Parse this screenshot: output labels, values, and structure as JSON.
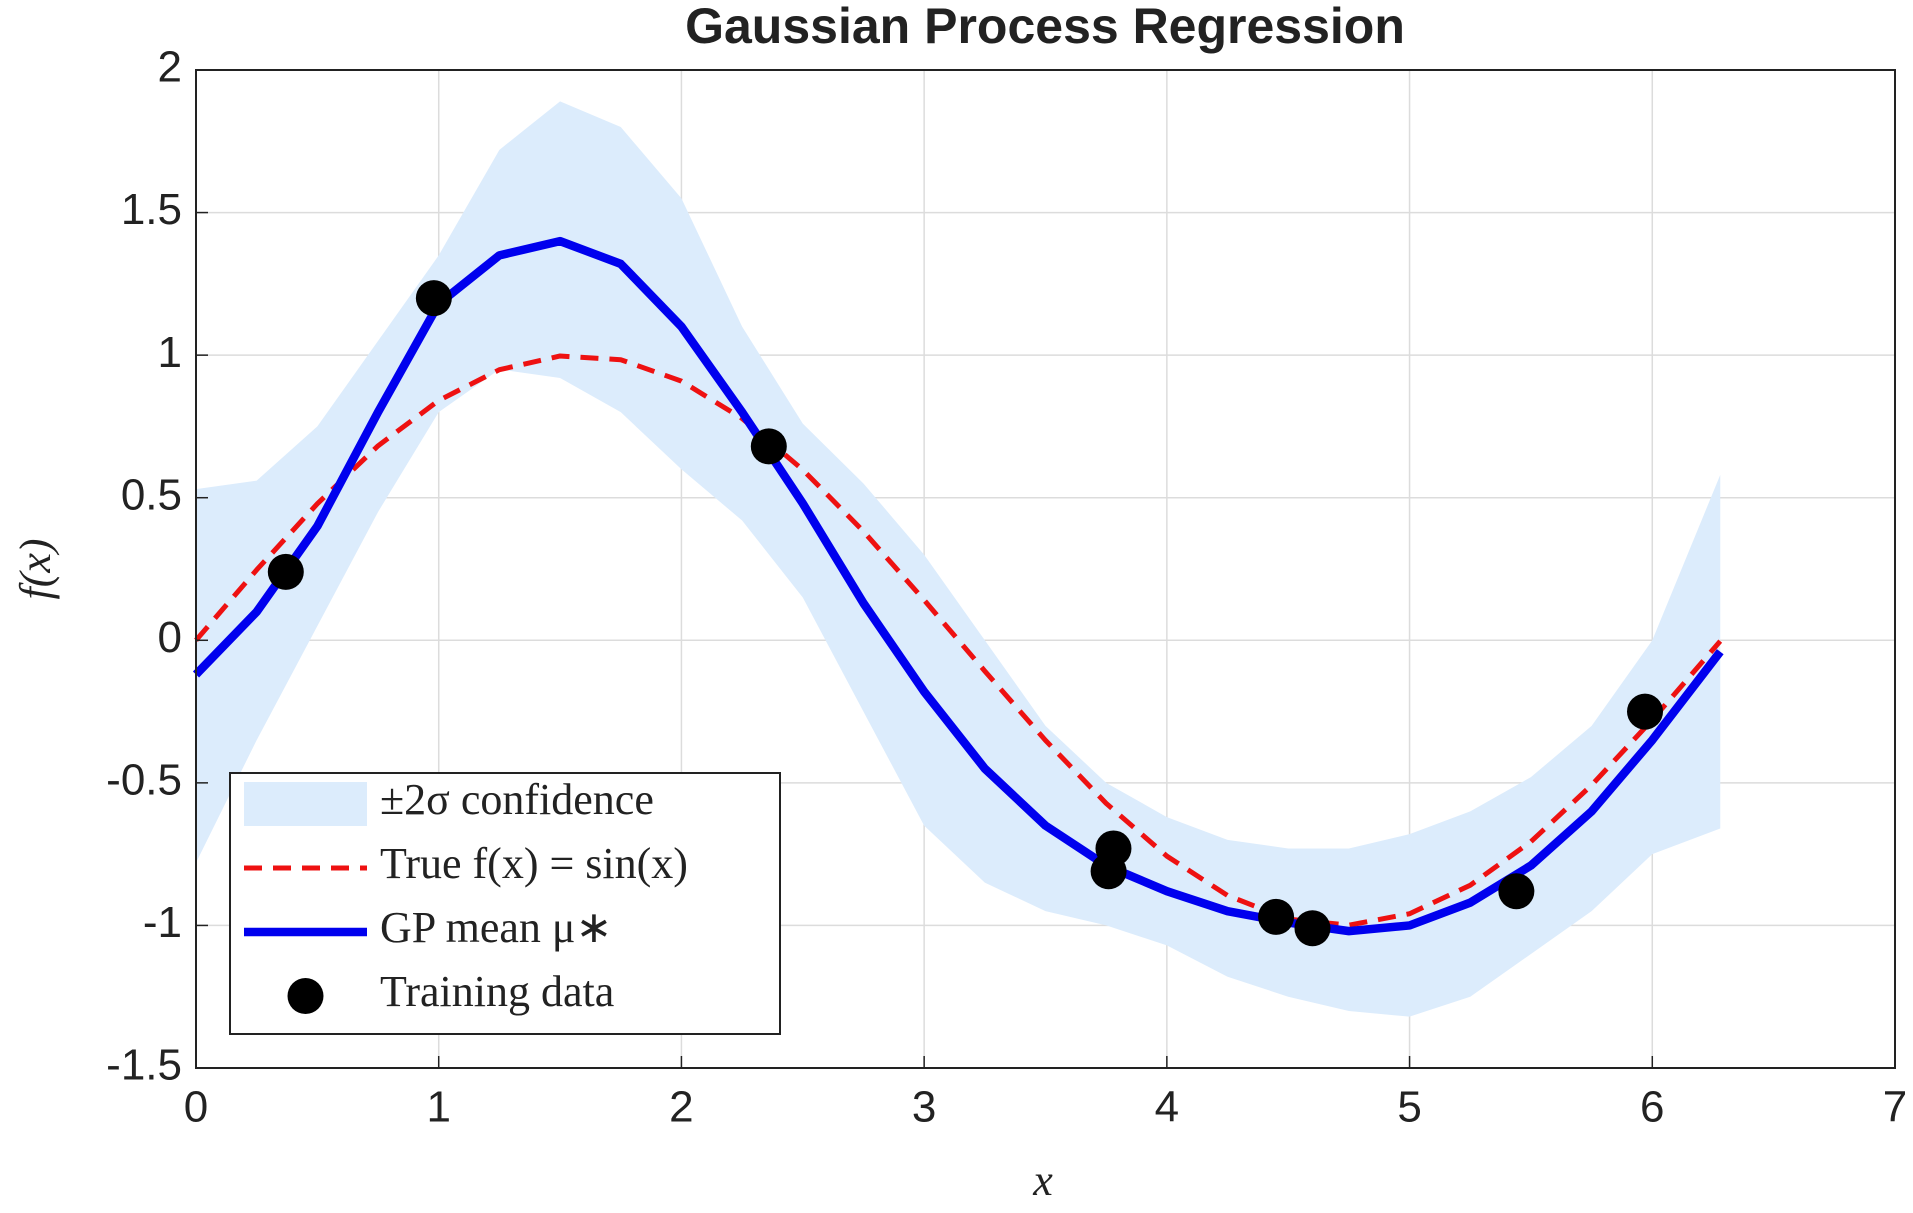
{
  "chart_data": {
    "type": "line",
    "title": "Gaussian Process Regression",
    "x_label": "x",
    "y_label": "f(x)",
    "xlim": [
      0,
      7
    ],
    "xticks": [
      0,
      1,
      2,
      3,
      4,
      5,
      6,
      7
    ],
    "ylim": [
      -1.5,
      2
    ],
    "yticks": [
      -1.5,
      -1,
      -0.5,
      0,
      0.5,
      1,
      1.5,
      2
    ],
    "grid": true,
    "legend": "lower left",
    "x": [
      0,
      0.25,
      0.5,
      0.75,
      1,
      1.25,
      1.5,
      1.75,
      2,
      2.25,
      2.5,
      2.75,
      3,
      3.25,
      3.5,
      3.75,
      4,
      4.25,
      4.5,
      4.75,
      5,
      5.25,
      5.5,
      5.75,
      6,
      6.28
    ],
    "series": [
      {
        "name": "±2σ confidence",
        "type": "band",
        "color": "#dcecfc",
        "upper": [
          0.53,
          0.56,
          0.75,
          1.05,
          1.35,
          1.72,
          1.89,
          1.8,
          1.55,
          1.1,
          0.76,
          0.55,
          0.3,
          0,
          -0.3,
          -0.5,
          -0.62,
          -0.7,
          -0.73,
          -0.73,
          -0.68,
          -0.6,
          -0.48,
          -0.3,
          0,
          0.58
        ],
        "lower": [
          -0.78,
          -0.35,
          0.05,
          0.45,
          0.8,
          0.95,
          0.92,
          0.8,
          0.6,
          0.42,
          0.15,
          -0.25,
          -0.65,
          -0.85,
          -0.95,
          -1,
          -1.07,
          -1.18,
          -1.25,
          -1.3,
          -1.32,
          -1.25,
          -1.1,
          -0.95,
          -0.75,
          -0.66
        ]
      },
      {
        "name": "True f(x) = sin(x)",
        "type": "dashed",
        "color": "#ee1111",
        "values": [
          0,
          0.247,
          0.479,
          0.682,
          0.841,
          0.949,
          0.997,
          0.984,
          0.909,
          0.778,
          0.598,
          0.382,
          0.141,
          -0.108,
          -0.351,
          -0.572,
          -0.757,
          -0.895,
          -0.978,
          -0.999,
          -0.959,
          -0.859,
          -0.706,
          -0.508,
          -0.279,
          -0.003
        ]
      },
      {
        "name": "GP mean μ∗",
        "type": "solid",
        "color": "#0000ee",
        "values": [
          -0.12,
          0.1,
          0.4,
          0.8,
          1.18,
          1.35,
          1.4,
          1.32,
          1.1,
          0.8,
          0.48,
          0.13,
          -0.18,
          -0.45,
          -0.65,
          -0.79,
          -0.88,
          -0.95,
          -0.99,
          -1.02,
          -1,
          -0.92,
          -0.79,
          -0.6,
          -0.35,
          -0.04
        ]
      },
      {
        "name": "Training data",
        "type": "scatter",
        "color": "#000000",
        "x": [
          0.37,
          0.98,
          2.36,
          3.78,
          3.76,
          4.45,
          4.6,
          5.44,
          5.97
        ],
        "values": [
          0.24,
          1.2,
          0.68,
          -0.73,
          -0.81,
          -0.97,
          -1.01,
          -0.88,
          -0.25
        ]
      }
    ]
  }
}
